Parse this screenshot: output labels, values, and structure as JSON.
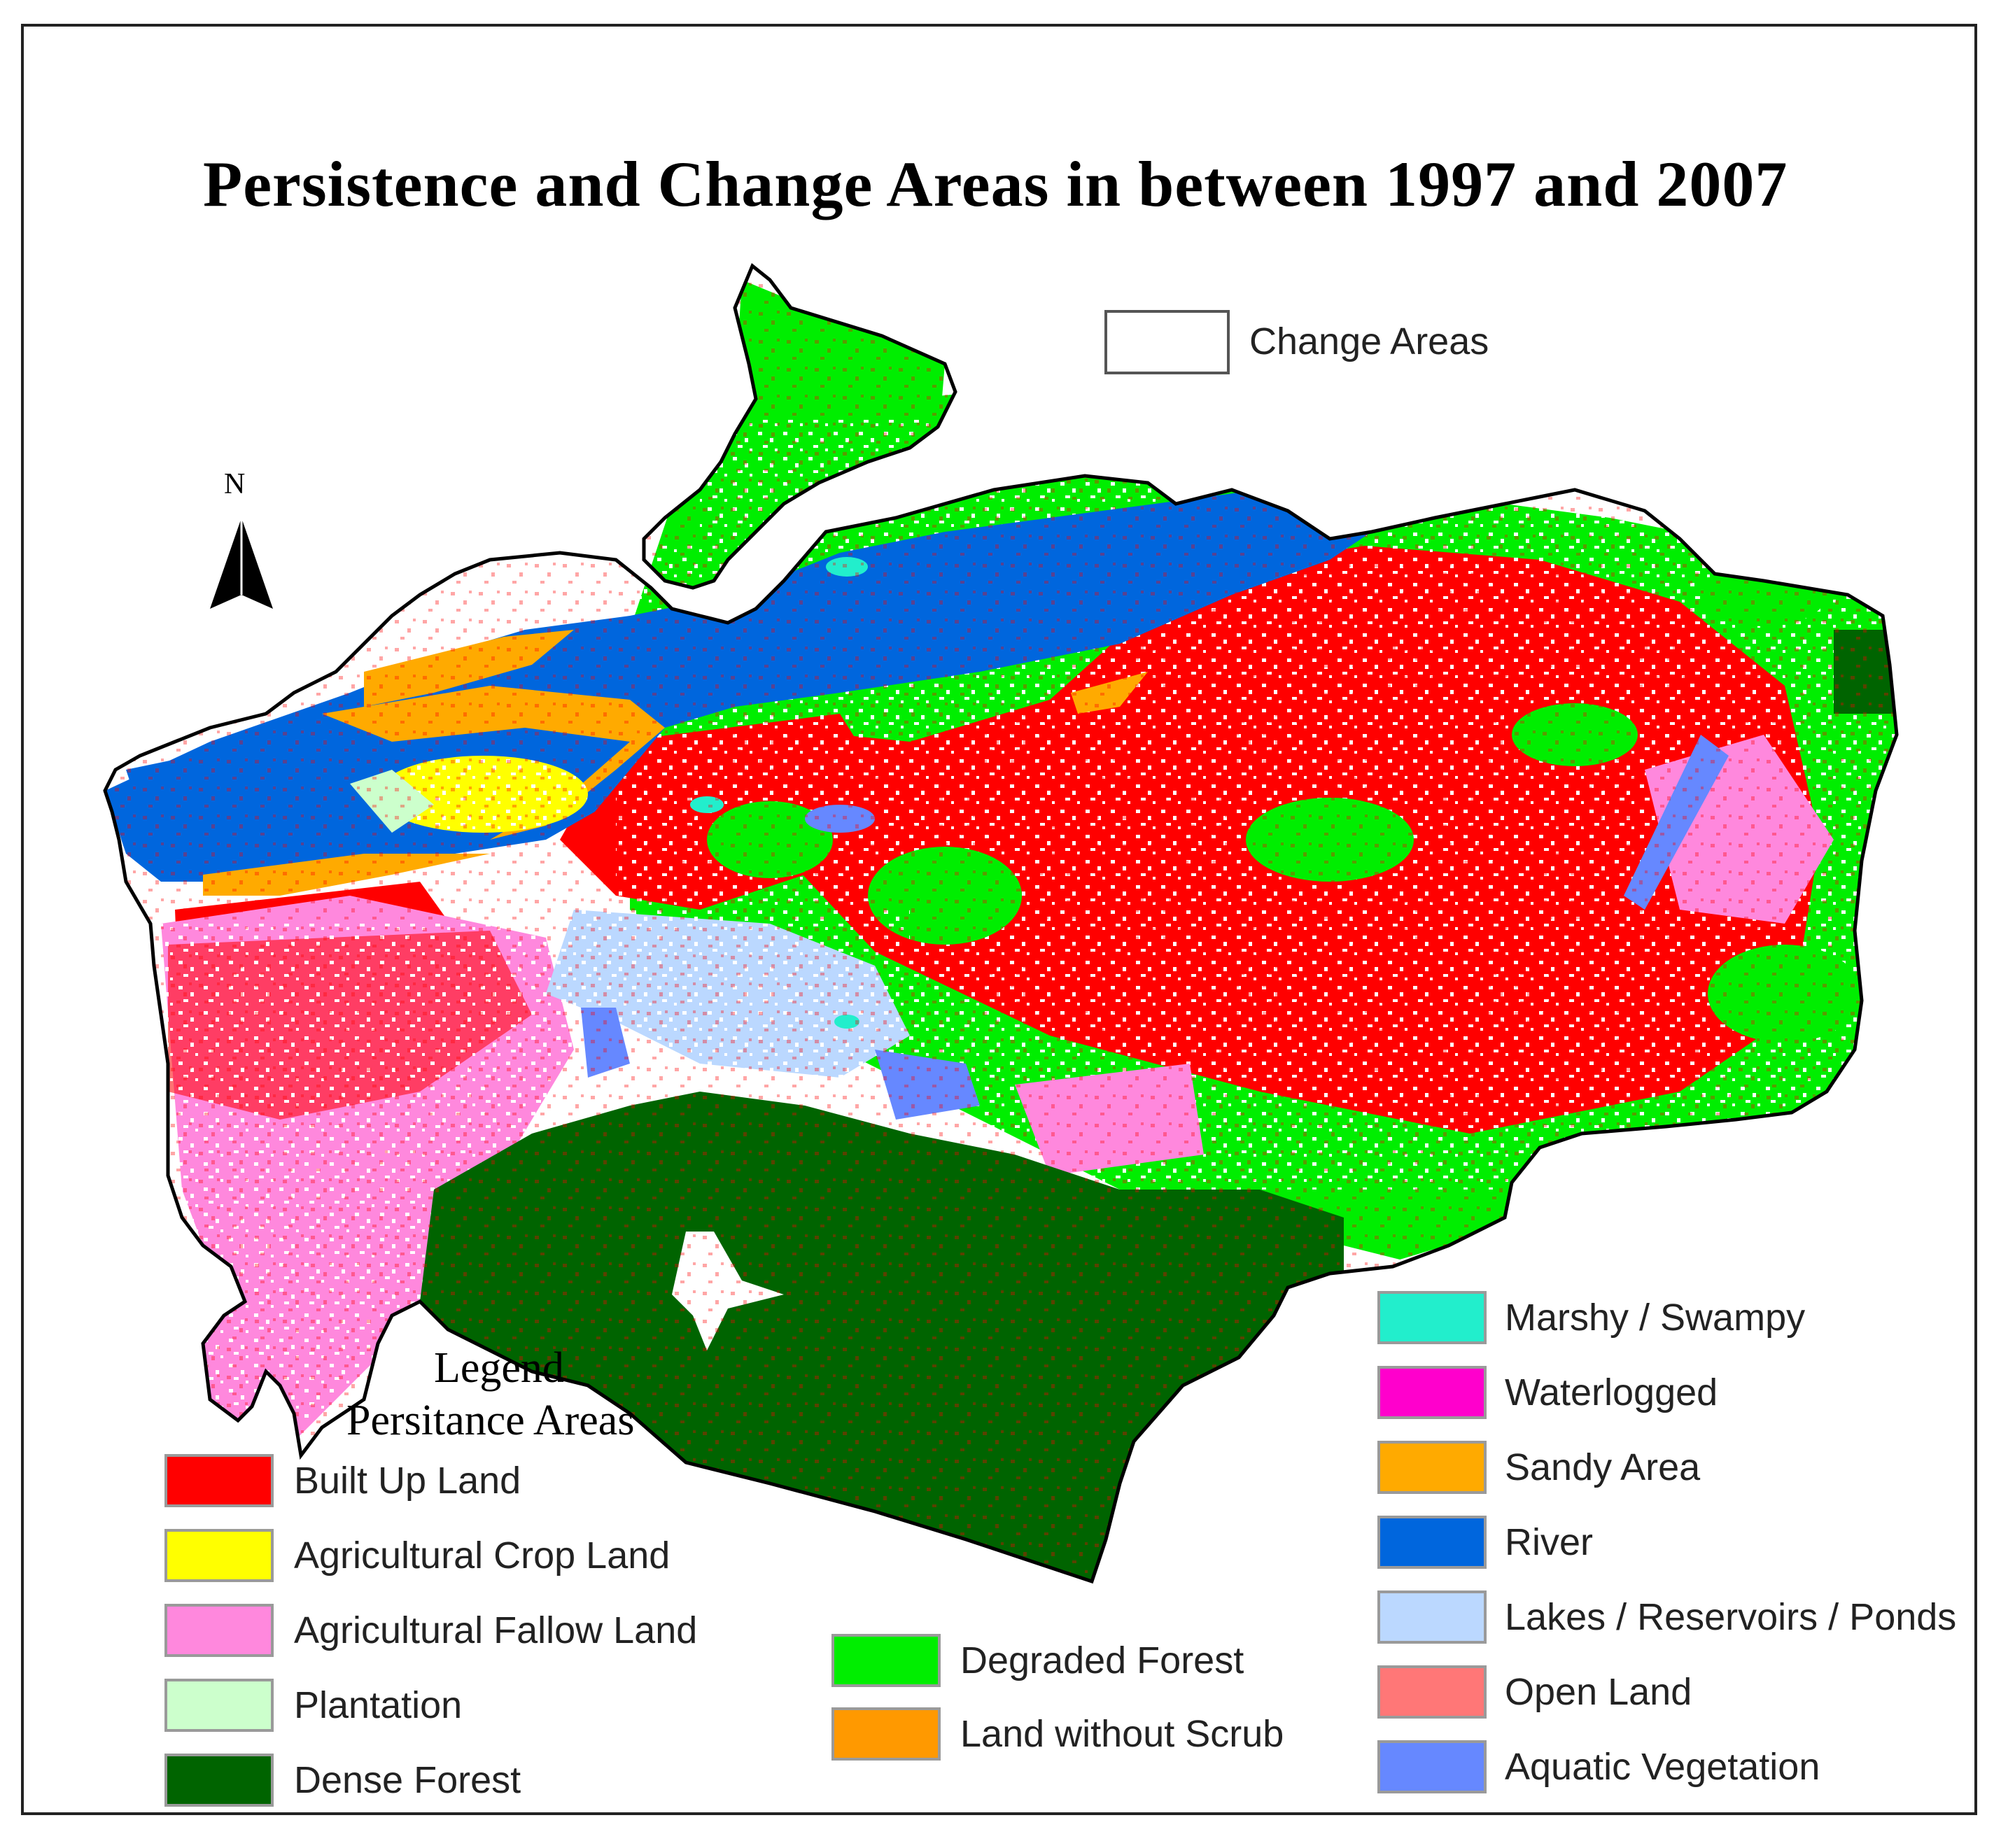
{
  "title": "Persistence and Change Areas in between 1997 and 2007",
  "north_arrow": {
    "label": "N"
  },
  "change_legend": {
    "label": "Change Areas",
    "color": "#ffffff"
  },
  "legend": {
    "heading": "Legend",
    "subheading": "Persitance Areas",
    "left_items": [
      {
        "label": "Built Up Land",
        "color": "#ff0000"
      },
      {
        "label": "Agricultural  Crop Land",
        "color": "#ffff00"
      },
      {
        "label": "Agricultural  Fallow Land",
        "color": "#ff88dd"
      },
      {
        "label": "Plantation",
        "color": "#ccffcc"
      },
      {
        "label": "Dense Forest",
        "color": "#006400"
      }
    ],
    "middle_items": [
      {
        "label": "Degraded Forest",
        "color": "#00ee00"
      },
      {
        "label": "Land without Scrub",
        "color": "#ff9900"
      }
    ],
    "right_items": [
      {
        "label": "Marshy / Swampy",
        "color": "#22eecc"
      },
      {
        "label": "Waterlogged",
        "color": "#ff00cc"
      },
      {
        "label": "Sandy Area",
        "color": "#ffaa00"
      },
      {
        "label": "River",
        "color": "#0066dd"
      },
      {
        "label": "Lakes / Reservoirs / Ponds",
        "color": "#bbd8ff"
      },
      {
        "label": "Open Land",
        "color": "#ff7777"
      },
      {
        "label": "Aquatic Vegetation",
        "color": "#6688ff"
      }
    ]
  }
}
